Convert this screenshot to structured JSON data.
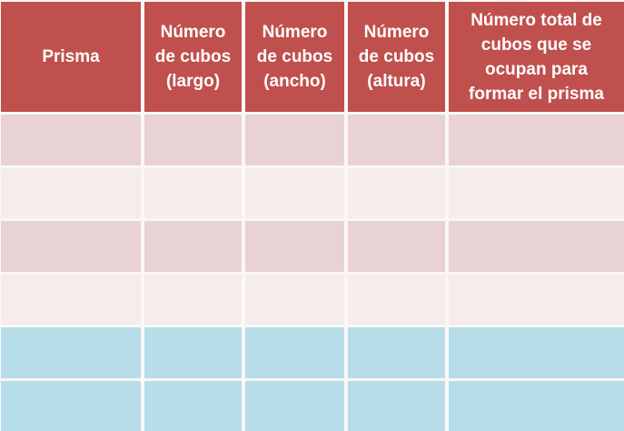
{
  "colors": {
    "header_bg": "#c0504d",
    "header_text": "#ffffff",
    "row_pink_dark": "#e8d2d4",
    "row_pink_light": "#f5eceb",
    "row_blue": "#b7dde8",
    "grid_line": "#fbf7f7"
  },
  "table": {
    "headers": [
      {
        "id": "prisma",
        "label": "Prisma"
      },
      {
        "id": "cubos-largo",
        "label": "Número\nde cubos\n(largo)"
      },
      {
        "id": "cubos-ancho",
        "label": "Número\nde cubos\n(ancho)"
      },
      {
        "id": "cubos-altura",
        "label": "Número\nde cubos\n(altura)"
      },
      {
        "id": "cubos-total",
        "label": "Número total de\ncubos que se\nocupan para\nformar el prisma"
      }
    ],
    "rows": [
      {
        "style": "pink-dark",
        "cells": [
          "",
          "",
          "",
          "",
          ""
        ]
      },
      {
        "style": "pink-light",
        "cells": [
          "",
          "",
          "",
          "",
          ""
        ]
      },
      {
        "style": "pink-dark",
        "cells": [
          "",
          "",
          "",
          "",
          ""
        ]
      },
      {
        "style": "pink-light",
        "cells": [
          "",
          "",
          "",
          "",
          ""
        ]
      },
      {
        "style": "blue",
        "cells": [
          "",
          "",
          "",
          "",
          ""
        ]
      },
      {
        "style": "blue",
        "cells": [
          "",
          "",
          "",
          "",
          ""
        ]
      }
    ]
  }
}
